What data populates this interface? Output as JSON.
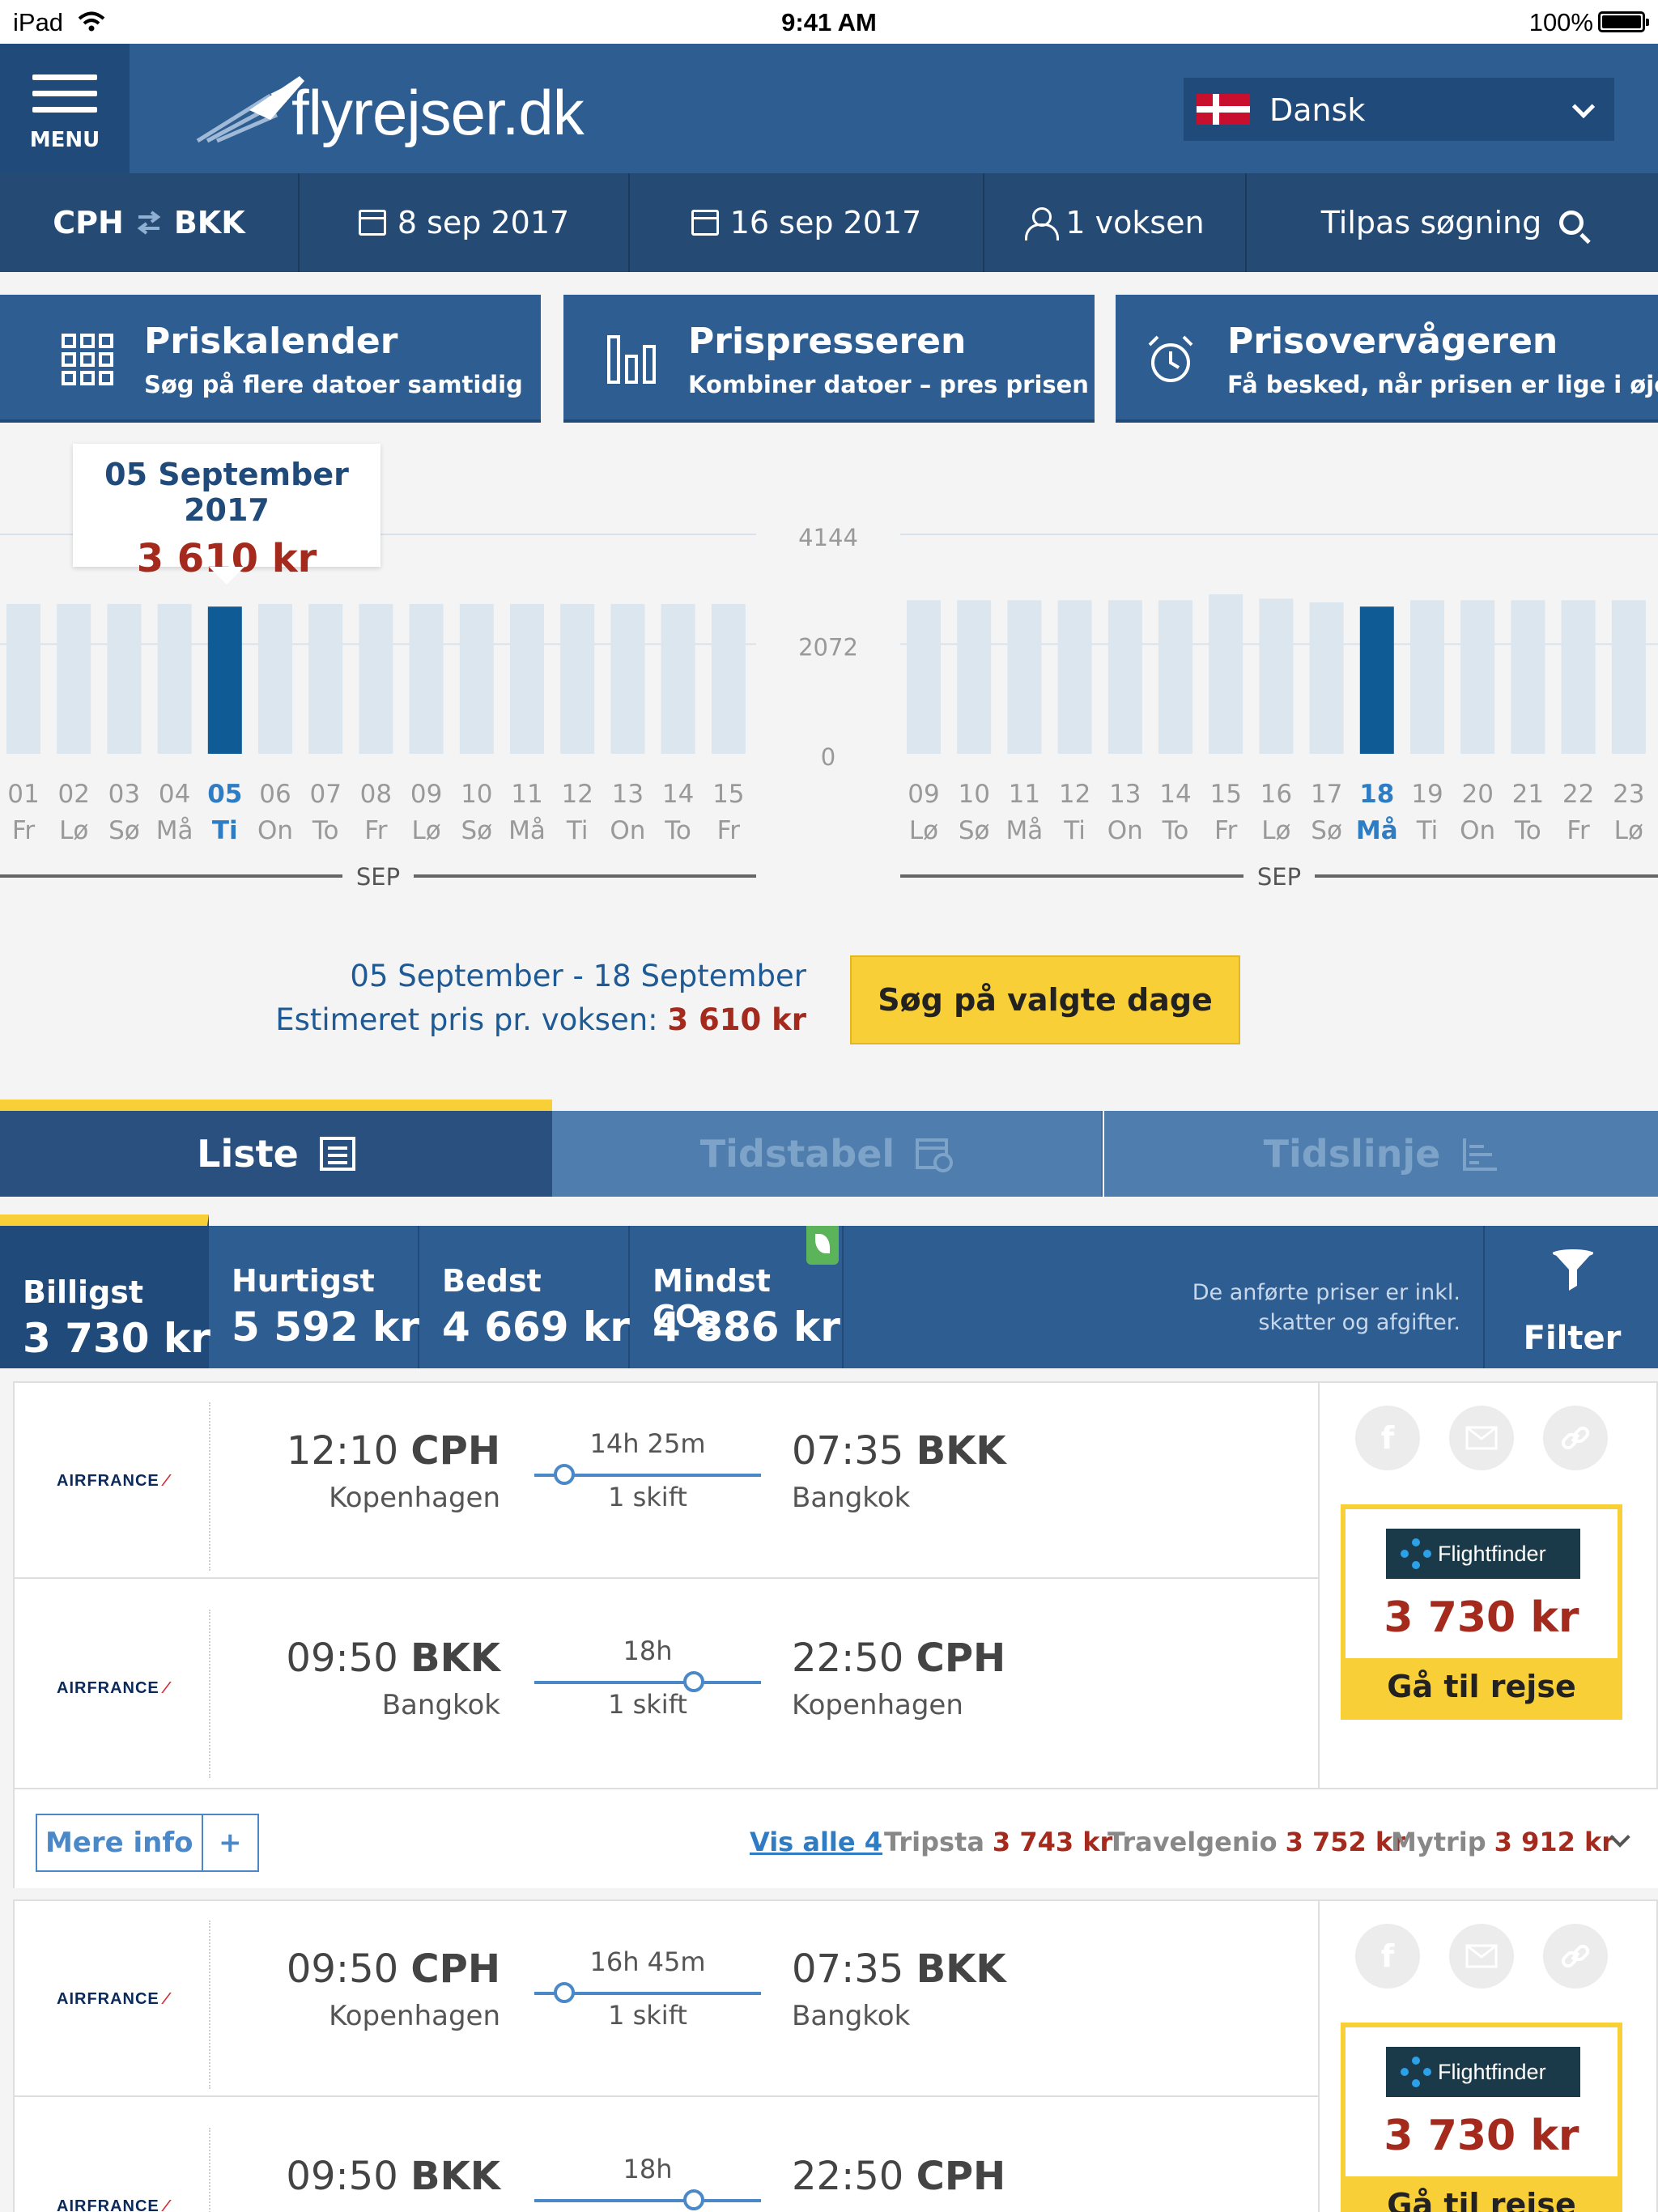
{
  "status_bar": {
    "device": "iPad",
    "time": "9:41 AM",
    "battery": "100%"
  },
  "header": {
    "menu_label": "MENU",
    "logo_text": "flyrejser.dk",
    "language": "Dansk"
  },
  "search": {
    "from": "CPH",
    "to": "BKK",
    "depart_date": "8 sep 2017",
    "return_date": "16 sep 2017",
    "passengers": "1 voksen",
    "adjust_label": "Tilpas søgning"
  },
  "features": [
    {
      "title": "Priskalender",
      "subtitle": "Søg på flere datoer samtidig",
      "icon": "calendar-grid-icon"
    },
    {
      "title": "Prispresseren",
      "subtitle": "Kombiner datoer – pres prisen",
      "icon": "bar-chart-icon"
    },
    {
      "title": "Prisovervågeren",
      "subtitle": "Få besked, når prisen er lige i øjet",
      "icon": "alarm-clock-icon"
    }
  ],
  "tooltip": {
    "date": "05 September 2017",
    "price": "3 610 kr"
  },
  "chart_data": [
    {
      "type": "bar",
      "name": "outbound",
      "month_label": "SEP",
      "categories": [
        "01",
        "02",
        "03",
        "04",
        "05",
        "06",
        "07",
        "08",
        "09",
        "10",
        "11",
        "12",
        "13",
        "14",
        "15"
      ],
      "weekdays": [
        "Fr",
        "Lø",
        "Sø",
        "Må",
        "Ti",
        "On",
        "To",
        "Fr",
        "Lø",
        "Sø",
        "Må",
        "Ti",
        "On",
        "To",
        "Fr"
      ],
      "values": [
        2830,
        2830,
        2830,
        2830,
        2780,
        2830,
        2830,
        2830,
        2830,
        2830,
        2830,
        2830,
        2830,
        2830,
        2830
      ],
      "selected_index": 4,
      "yticks": [
        0,
        2072,
        4144
      ],
      "ylim": [
        0,
        4144
      ]
    },
    {
      "type": "bar",
      "name": "return",
      "month_label": "SEP",
      "categories": [
        "09",
        "10",
        "11",
        "12",
        "13",
        "14",
        "15",
        "16",
        "17",
        "18",
        "19",
        "20",
        "21",
        "22",
        "23"
      ],
      "weekdays": [
        "Lø",
        "Sø",
        "Må",
        "Ti",
        "On",
        "To",
        "Fr",
        "Lø",
        "Sø",
        "Må",
        "Ti",
        "On",
        "To",
        "Fr",
        "Lø"
      ],
      "values": [
        2900,
        2900,
        2900,
        2900,
        2900,
        2900,
        3010,
        2930,
        2860,
        2780,
        2900,
        2900,
        2900,
        2900,
        2900
      ],
      "selected_index": 9,
      "yticks": [
        0,
        2072,
        4144
      ],
      "ylim": [
        0,
        4144
      ]
    }
  ],
  "selection": {
    "range": "05 September - 18 September",
    "estimate_label": "Estimeret pris pr. voksen:",
    "estimate_value": "3 610 kr",
    "search_button": "Søg på valgte dage"
  },
  "view_tabs": [
    {
      "label": "Liste",
      "active": true
    },
    {
      "label": "Tidstabel",
      "active": false
    },
    {
      "label": "Tidslinje",
      "active": false
    }
  ],
  "sort_tabs": [
    {
      "label": "Billigst",
      "value": "3 730 kr"
    },
    {
      "label": "Hurtigst",
      "value": "5 592 kr"
    },
    {
      "label": "Bedst",
      "value": "4 669 kr"
    },
    {
      "label": "Mindst CO",
      "label_sub": "2",
      "value": "4 886 kr"
    }
  ],
  "tax_note_1": "De anførte priser er inkl.",
  "tax_note_2": "skatter og afgifter.",
  "filter_label": "Filter",
  "results": [
    {
      "legs": [
        {
          "airline": "AIRFRANCE",
          "dep_time": "12:10",
          "dep_code": "CPH",
          "dep_city": "Kopenhagen",
          "duration": "14h 25m",
          "stops": "1 skift",
          "arr_time": "07:35",
          "arr_code": "BKK",
          "arr_city": "Bangkok",
          "stop_pos": 0.14
        },
        {
          "airline": "AIRFRANCE",
          "dep_time": "09:50",
          "dep_code": "BKK",
          "dep_city": "Bangkok",
          "duration": "18h",
          "stops": "1 skift",
          "arr_time": "22:50",
          "arr_code": "CPH",
          "arr_city": "Kopenhagen",
          "stop_pos": 0.69
        }
      ],
      "provider": "Flightfinder",
      "price": "3 730 kr",
      "go_label": "Gå til rejse",
      "more_info": "Mere info",
      "show_all": "Vis alle 4",
      "alternatives": [
        {
          "name": "Tripsta",
          "price": "3 743 kr"
        },
        {
          "name": "Travelgenio",
          "price": "3 752 kr"
        },
        {
          "name": "Mytrip",
          "price": "3 912 kr"
        }
      ]
    },
    {
      "legs": [
        {
          "airline": "AIRFRANCE",
          "dep_time": "09:50",
          "dep_code": "CPH",
          "dep_city": "Kopenhagen",
          "duration": "16h 45m",
          "stops": "1 skift",
          "arr_time": "07:35",
          "arr_code": "BKK",
          "arr_city": "Bangkok",
          "stop_pos": 0.14
        },
        {
          "airline": "AIRFRANCE",
          "dep_time": "09:50",
          "dep_code": "BKK",
          "dep_city": "",
          "duration": "18h",
          "stops": "",
          "arr_time": "22:50",
          "arr_code": "CPH",
          "arr_city": "",
          "stop_pos": 0.69
        }
      ],
      "provider": "Flightfinder",
      "price": "3 730 kr",
      "go_label": "Gå til rejse"
    }
  ],
  "colors": {
    "brand": "#2e5d92",
    "accent": "#f8cf36",
    "price": "#a52a1e",
    "bar": "#dbe6ef",
    "bar_selected": "#0f5b96"
  }
}
